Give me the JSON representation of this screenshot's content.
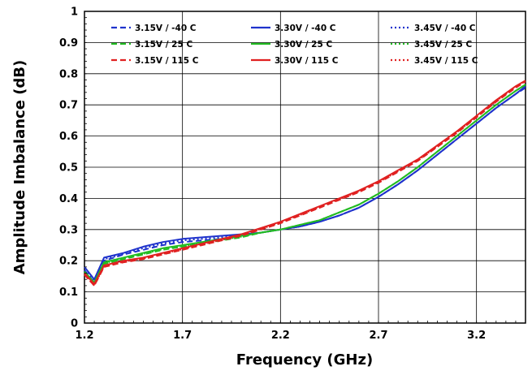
{
  "chart_data": {
    "type": "line",
    "title": "",
    "xlabel": "Frequency (GHz)",
    "ylabel": "Amplitude Imbalance (dB)",
    "xlim": [
      1.2,
      3.45
    ],
    "ylim": [
      0,
      1
    ],
    "x_ticks": [
      1.2,
      1.7,
      2.2,
      2.7,
      3.2
    ],
    "x_tick_labels": [
      "1.2",
      "1.7",
      "2.2",
      "2.7",
      "3.2"
    ],
    "y_ticks": [
      0,
      0.1,
      0.2,
      0.3,
      0.4,
      0.5,
      0.6,
      0.7,
      0.8,
      0.9,
      1
    ],
    "y_tick_labels": [
      "0",
      "0.1",
      "0.2",
      "0.3",
      "0.4",
      "0.5",
      "0.6",
      "0.7",
      "0.8",
      "0.9",
      "1"
    ],
    "grid": true,
    "legend_position": "top",
    "x": [
      1.2,
      1.25,
      1.3,
      1.4,
      1.5,
      1.6,
      1.7,
      1.8,
      1.9,
      2.0,
      2.1,
      2.2,
      2.3,
      2.4,
      2.5,
      2.6,
      2.7,
      2.8,
      2.9,
      3.0,
      3.1,
      3.2,
      3.3,
      3.4,
      3.45
    ],
    "series": [
      {
        "name": "3.15V / -40 C",
        "color": "#1f33cc",
        "dash": "dashed",
        "values": [
          0.17,
          0.13,
          0.2,
          0.22,
          0.235,
          0.25,
          0.26,
          0.265,
          0.27,
          0.28,
          0.29,
          0.3,
          0.31,
          0.325,
          0.345,
          0.37,
          0.405,
          0.445,
          0.49,
          0.54,
          0.59,
          0.64,
          0.69,
          0.735,
          0.755
        ]
      },
      {
        "name": "3.30V / -40 C",
        "color": "#1f33cc",
        "dash": "solid",
        "values": [
          0.18,
          0.14,
          0.21,
          0.225,
          0.245,
          0.26,
          0.27,
          0.275,
          0.28,
          0.285,
          0.29,
          0.3,
          0.31,
          0.325,
          0.345,
          0.37,
          0.405,
          0.445,
          0.49,
          0.54,
          0.59,
          0.64,
          0.69,
          0.735,
          0.76
        ]
      },
      {
        "name": "3.45V / -40 C",
        "color": "#1f33cc",
        "dash": "dotted",
        "values": [
          0.17,
          0.135,
          0.205,
          0.222,
          0.24,
          0.255,
          0.265,
          0.27,
          0.275,
          0.282,
          0.29,
          0.3,
          0.31,
          0.325,
          0.345,
          0.37,
          0.405,
          0.445,
          0.49,
          0.54,
          0.59,
          0.64,
          0.69,
          0.735,
          0.757
        ]
      },
      {
        "name": "3.15V / 25 C",
        "color": "#22bb22",
        "dash": "dashed",
        "values": [
          0.16,
          0.125,
          0.19,
          0.205,
          0.22,
          0.235,
          0.245,
          0.255,
          0.265,
          0.275,
          0.29,
          0.3,
          0.315,
          0.33,
          0.355,
          0.38,
          0.415,
          0.455,
          0.5,
          0.55,
          0.6,
          0.65,
          0.7,
          0.745,
          0.765
        ]
      },
      {
        "name": "3.30V / 25 C",
        "color": "#22bb22",
        "dash": "solid",
        "values": [
          0.165,
          0.13,
          0.195,
          0.21,
          0.225,
          0.24,
          0.25,
          0.26,
          0.27,
          0.28,
          0.29,
          0.3,
          0.315,
          0.33,
          0.355,
          0.38,
          0.415,
          0.455,
          0.5,
          0.55,
          0.6,
          0.65,
          0.7,
          0.745,
          0.765
        ]
      },
      {
        "name": "3.45V / 25 C",
        "color": "#22bb22",
        "dash": "dotted",
        "values": [
          0.16,
          0.128,
          0.192,
          0.207,
          0.222,
          0.237,
          0.247,
          0.257,
          0.267,
          0.277,
          0.29,
          0.3,
          0.315,
          0.33,
          0.355,
          0.38,
          0.415,
          0.455,
          0.5,
          0.55,
          0.6,
          0.65,
          0.7,
          0.745,
          0.765
        ]
      },
      {
        "name": "3.15V / 115 C",
        "color": "#e02020",
        "dash": "dashed",
        "values": [
          0.155,
          0.12,
          0.18,
          0.195,
          0.205,
          0.22,
          0.235,
          0.25,
          0.265,
          0.28,
          0.3,
          0.32,
          0.345,
          0.37,
          0.395,
          0.42,
          0.45,
          0.485,
          0.52,
          0.565,
          0.61,
          0.66,
          0.71,
          0.755,
          0.775
        ]
      },
      {
        "name": "3.30V / 115 C",
        "color": "#e02020",
        "dash": "solid",
        "values": [
          0.16,
          0.125,
          0.185,
          0.2,
          0.21,
          0.225,
          0.24,
          0.255,
          0.27,
          0.285,
          0.305,
          0.325,
          0.35,
          0.375,
          0.4,
          0.425,
          0.455,
          0.49,
          0.525,
          0.57,
          0.615,
          0.665,
          0.715,
          0.76,
          0.778
        ]
      },
      {
        "name": "3.45V / 115 C",
        "color": "#e02020",
        "dash": "dotted",
        "values": [
          0.155,
          0.12,
          0.182,
          0.197,
          0.207,
          0.222,
          0.237,
          0.252,
          0.267,
          0.282,
          0.302,
          0.322,
          0.347,
          0.372,
          0.397,
          0.422,
          0.452,
          0.487,
          0.522,
          0.567,
          0.612,
          0.662,
          0.712,
          0.757,
          0.776
        ]
      }
    ]
  }
}
